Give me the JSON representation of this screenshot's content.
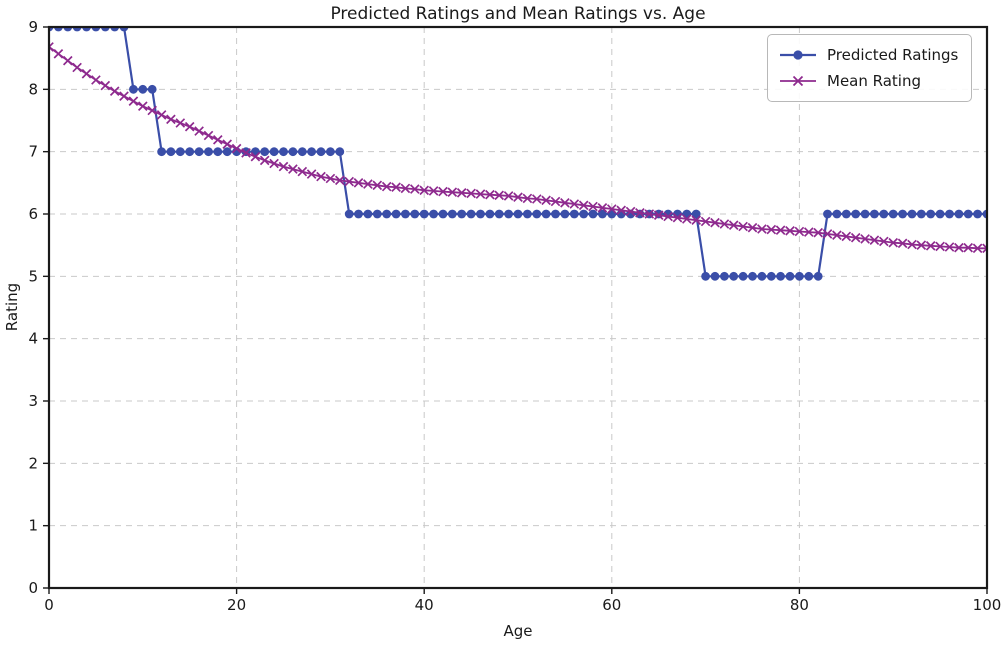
{
  "chart_data": {
    "type": "line",
    "title": "Predicted Ratings and Mean Ratings vs. Age",
    "xlabel": "Age",
    "ylabel": "Rating",
    "xlim": [
      0,
      100
    ],
    "ylim": [
      0,
      9
    ],
    "x_ticks": [
      0,
      20,
      40,
      60,
      80,
      100
    ],
    "y_ticks": [
      0,
      1,
      2,
      3,
      4,
      5,
      6,
      7,
      8,
      9
    ],
    "grid": true,
    "grid_style": "dashed",
    "legend_position": "upper right",
    "x": [
      0,
      1,
      2,
      3,
      4,
      5,
      6,
      7,
      8,
      9,
      10,
      11,
      12,
      13,
      14,
      15,
      16,
      17,
      18,
      19,
      20,
      21,
      22,
      23,
      24,
      25,
      26,
      27,
      28,
      29,
      30,
      31,
      32,
      33,
      34,
      35,
      36,
      37,
      38,
      39,
      40,
      41,
      42,
      43,
      44,
      45,
      46,
      47,
      48,
      49,
      50,
      51,
      52,
      53,
      54,
      55,
      56,
      57,
      58,
      59,
      60,
      61,
      62,
      63,
      64,
      65,
      66,
      67,
      68,
      69,
      70,
      71,
      72,
      73,
      74,
      75,
      76,
      77,
      78,
      79,
      80,
      81,
      82,
      83,
      84,
      85,
      86,
      87,
      88,
      89,
      90,
      91,
      92,
      93,
      94,
      95,
      96,
      97,
      98,
      99,
      100
    ],
    "series": [
      {
        "name": "Predicted Ratings",
        "marker": "circle",
        "color": "#3a4ea8",
        "linewidth": 2.2,
        "values": [
          9,
          9,
          9,
          9,
          9,
          9,
          9,
          9,
          9,
          8,
          8,
          8,
          7,
          7,
          7,
          7,
          7,
          7,
          7,
          7,
          7,
          7,
          7,
          7,
          7,
          7,
          7,
          7,
          7,
          7,
          7,
          7,
          6,
          6,
          6,
          6,
          6,
          6,
          6,
          6,
          6,
          6,
          6,
          6,
          6,
          6,
          6,
          6,
          6,
          6,
          6,
          6,
          6,
          6,
          6,
          6,
          6,
          6,
          6,
          6,
          6,
          6,
          6,
          6,
          6,
          6,
          6,
          6,
          6,
          6,
          5,
          5,
          5,
          5,
          5,
          5,
          5,
          5,
          5,
          5,
          5,
          5,
          5,
          6,
          6,
          6,
          6,
          6,
          6,
          6,
          6,
          6,
          6,
          6,
          6,
          6,
          6,
          6,
          6,
          6,
          6
        ]
      },
      {
        "name": "Mean Rating",
        "marker": "x",
        "color": "#8e2a8e",
        "linewidth": 1.8,
        "values": [
          8.68,
          8.57,
          8.46,
          8.35,
          8.25,
          8.15,
          8.06,
          7.97,
          7.89,
          7.81,
          7.73,
          7.66,
          7.59,
          7.52,
          7.46,
          7.4,
          7.33,
          7.26,
          7.19,
          7.12,
          7.05,
          6.98,
          6.92,
          6.86,
          6.81,
          6.76,
          6.72,
          6.68,
          6.64,
          6.6,
          6.57,
          6.54,
          6.52,
          6.5,
          6.48,
          6.46,
          6.44,
          6.43,
          6.41,
          6.4,
          6.38,
          6.37,
          6.36,
          6.35,
          6.34,
          6.33,
          6.32,
          6.31,
          6.3,
          6.29,
          6.27,
          6.25,
          6.24,
          6.22,
          6.2,
          6.18,
          6.16,
          6.14,
          6.12,
          6.1,
          6.08,
          6.06,
          6.04,
          6.02,
          6.0,
          5.98,
          5.96,
          5.94,
          5.92,
          5.9,
          5.88,
          5.86,
          5.84,
          5.82,
          5.8,
          5.78,
          5.76,
          5.75,
          5.74,
          5.73,
          5.72,
          5.71,
          5.7,
          5.68,
          5.66,
          5.64,
          5.62,
          5.6,
          5.58,
          5.56,
          5.54,
          5.53,
          5.51,
          5.5,
          5.49,
          5.48,
          5.47,
          5.46,
          5.46,
          5.45,
          5.45
        ]
      }
    ],
    "colors": {
      "grid": "#c9c9c9",
      "spine": "#1a1a1a",
      "text": "#1a1a1a",
      "legend_border": "#b8b8b8"
    }
  }
}
